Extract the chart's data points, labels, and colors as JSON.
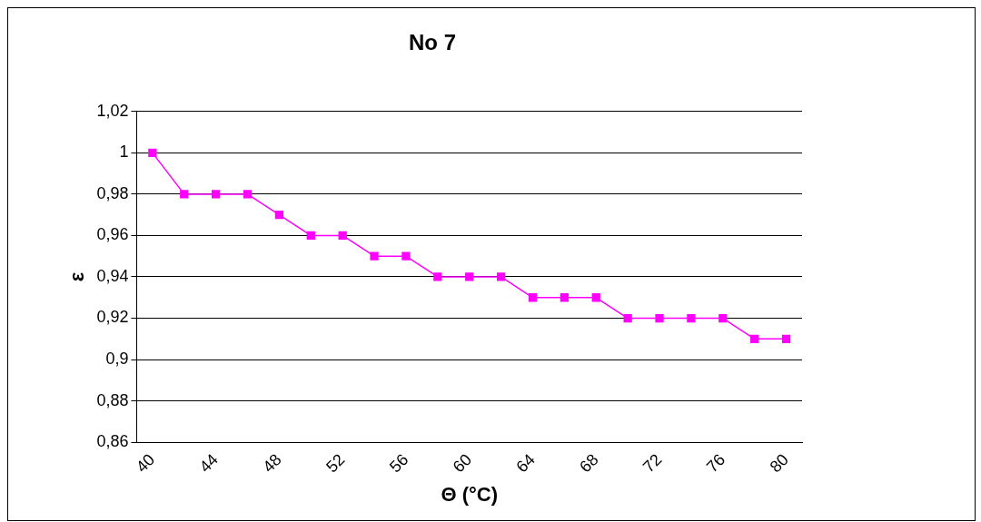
{
  "chart_data": {
    "type": "line",
    "title": "No 7",
    "xlabel": "Θ (°C)",
    "ylabel": "ε",
    "categories": [
      "40",
      null,
      "44",
      null,
      "48",
      null,
      "52",
      null,
      "56",
      null,
      "60",
      null,
      "64",
      null,
      "68",
      null,
      "72",
      null,
      "76",
      null,
      "80"
    ],
    "series": [
      {
        "color": "#ff00ff",
        "values": [
          1,
          0.98,
          0.98,
          0.98,
          0.97,
          0.96,
          0.96,
          0.95,
          0.95,
          0.94,
          0.94,
          0.94,
          0.93,
          0.93,
          0.93,
          0.92,
          0.92,
          0.92,
          0.92,
          0.91,
          0.91
        ]
      }
    ],
    "ylim": [
      0.86,
      1.02
    ],
    "yticks": [
      {
        "value": 0.86,
        "label": "0,86"
      },
      {
        "value": 0.88,
        "label": "0,88"
      },
      {
        "value": 0.9,
        "label": "0,9"
      },
      {
        "value": 0.92,
        "label": "0,92"
      },
      {
        "value": 0.94,
        "label": "0,94"
      },
      {
        "value": 0.96,
        "label": "0,96"
      },
      {
        "value": 0.98,
        "label": "0,98"
      },
      {
        "value": 1,
        "label": "1"
      },
      {
        "value": 1.02,
        "label": "1,02"
      }
    ],
    "grid": "y",
    "legend": false,
    "marker": "square",
    "line_style": "solid"
  }
}
